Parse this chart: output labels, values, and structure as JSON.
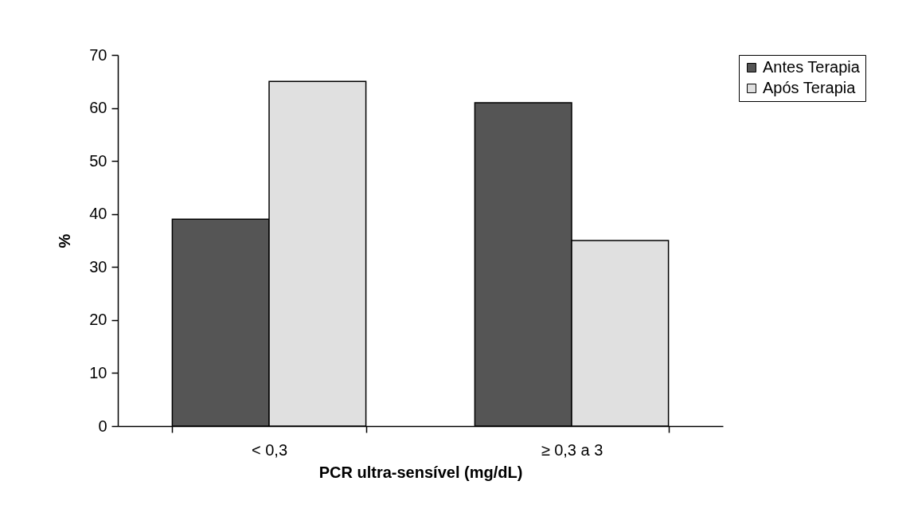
{
  "chart_data": {
    "type": "bar",
    "xlabel": "PCR ultra-sensível (mg/dL)",
    "ylabel": "%",
    "categories": [
      "< 0,3",
      "≥ 0,3 a 3"
    ],
    "series": [
      {
        "name": "Antes Terapia",
        "color": "#555555",
        "values": [
          39,
          61
        ]
      },
      {
        "name": "Após Terapia",
        "color": "#e0e0e0",
        "values": [
          65,
          35
        ]
      }
    ],
    "ylim": [
      0,
      70
    ],
    "yticks": [
      0,
      10,
      20,
      30,
      40,
      50,
      60,
      70
    ],
    "grid": false,
    "legend": "right"
  }
}
